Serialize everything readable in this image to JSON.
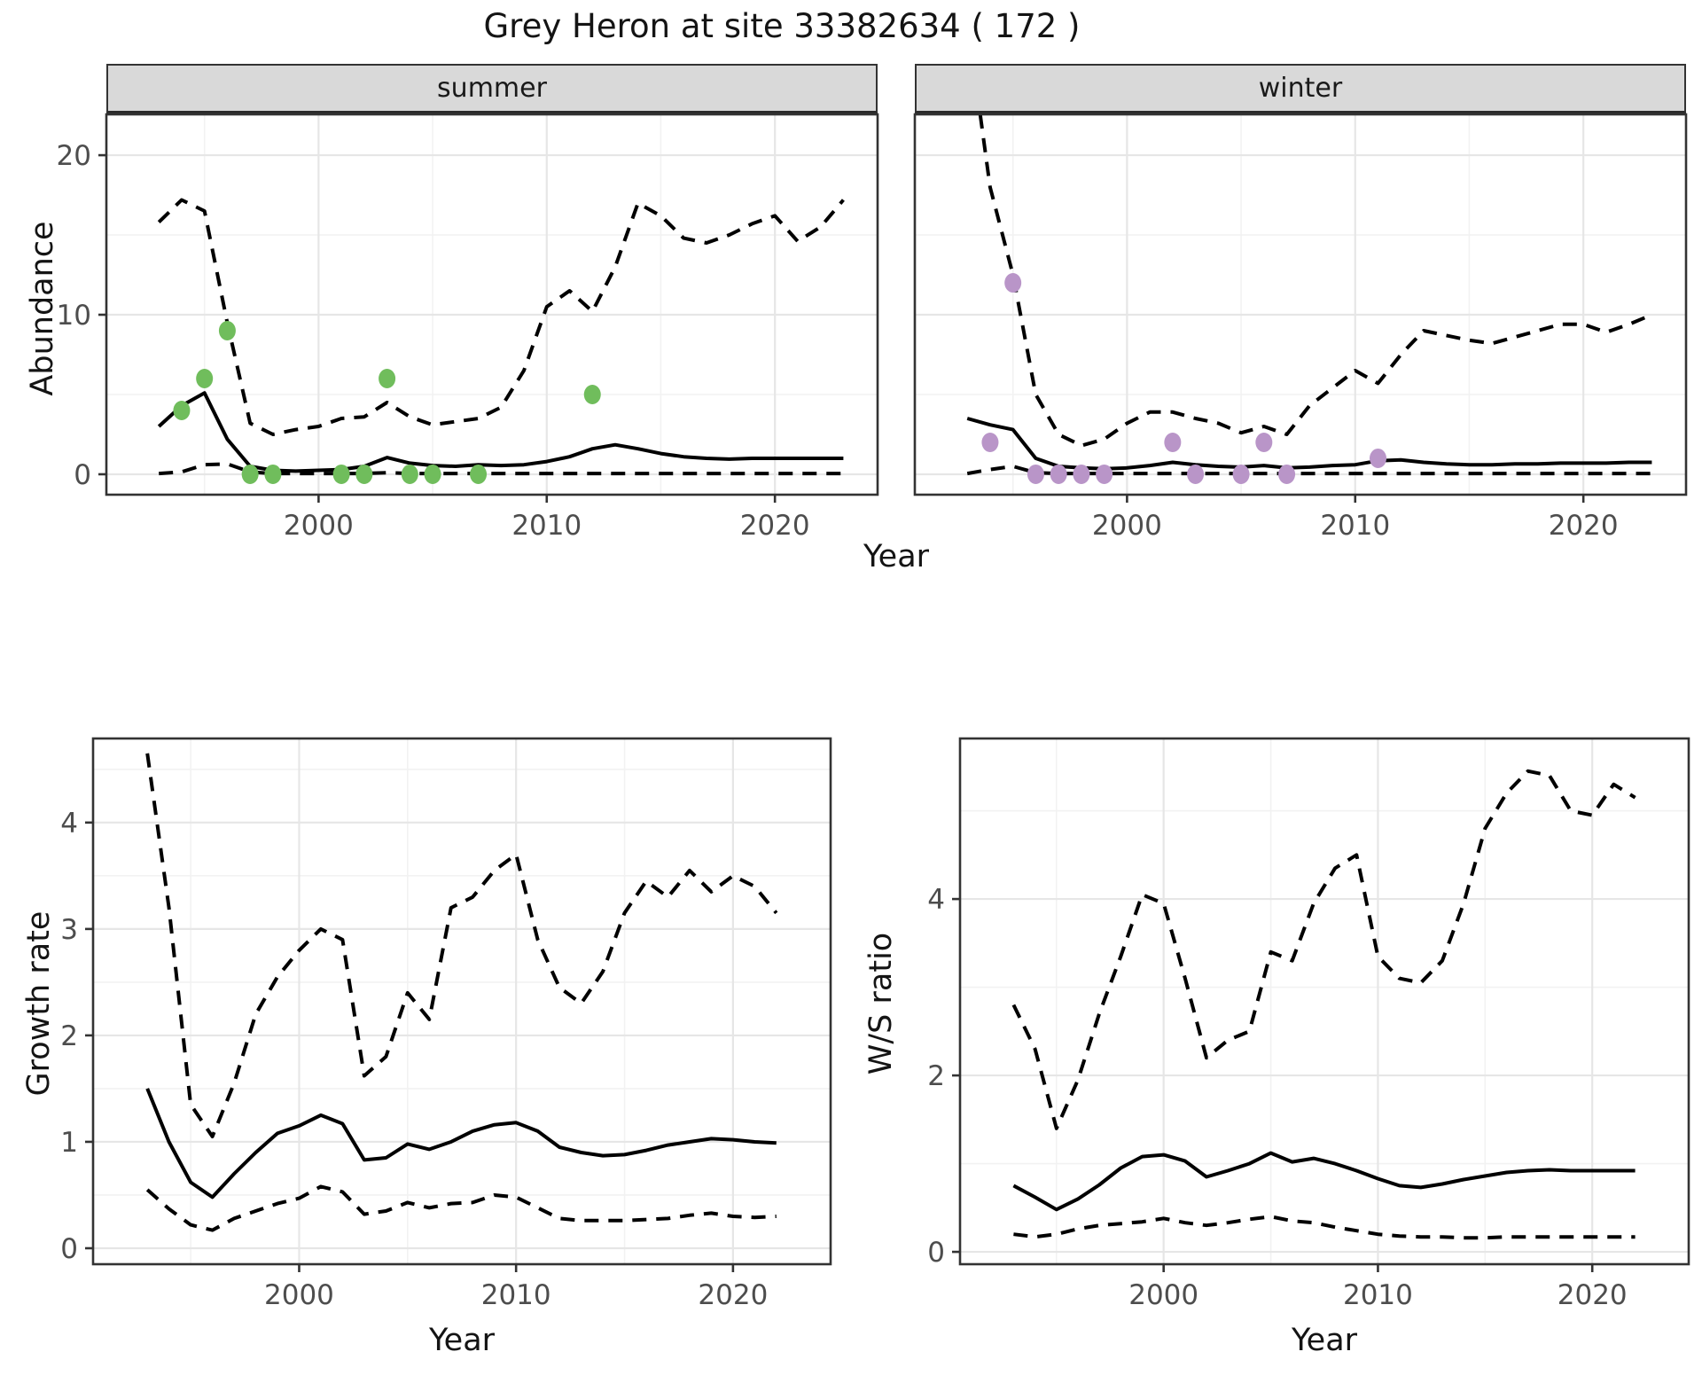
{
  "title": "Grey Heron at site 33382634 ( 172 )",
  "colors": {
    "summer_points": "#70bd5c",
    "winter_points": "#b995c8",
    "line": "#000000",
    "strip_fill": "#d9d9d9",
    "grid_major": "#e6e6e6",
    "grid_minor": "#f2f2f2",
    "axis_text": "#4d4d4d",
    "panel_border": "#333333"
  },
  "top_figure": {
    "ylab": "Abundance",
    "xlab": "Year",
    "facets": [
      "summer",
      "winter"
    ]
  },
  "bottom_left": {
    "ylab": "Growth rate",
    "xlab": "Year"
  },
  "bottom_right": {
    "ylab": "W/S ratio",
    "xlab": "Year"
  },
  "chart_data": [
    {
      "id": "abundance_summer",
      "type": "line",
      "facet": "summer",
      "title": "Abundance - summer",
      "xlabel": "Year",
      "ylabel": "Abundance",
      "x": [
        1993,
        1994,
        1995,
        1996,
        1997,
        1998,
        1999,
        2000,
        2001,
        2002,
        2003,
        2004,
        2005,
        2006,
        2007,
        2008,
        2009,
        2010,
        2011,
        2012,
        2013,
        2014,
        2015,
        2016,
        2017,
        2018,
        2019,
        2020,
        2021,
        2022,
        2023
      ],
      "series": [
        {
          "name": "fitted",
          "style": "solid",
          "values": [
            3.0,
            4.3,
            5.1,
            2.2,
            0.5,
            0.25,
            0.2,
            0.25,
            0.3,
            0.5,
            1.05,
            0.7,
            0.55,
            0.5,
            0.6,
            0.55,
            0.6,
            0.8,
            1.1,
            1.6,
            1.85,
            1.6,
            1.3,
            1.1,
            1.0,
            0.95,
            1.0,
            1.0,
            1.0,
            1.0,
            1.0
          ]
        },
        {
          "name": "upper_ci",
          "style": "dashed",
          "values": [
            15.8,
            17.2,
            16.5,
            9.5,
            3.2,
            2.5,
            2.8,
            3.0,
            3.5,
            3.6,
            4.5,
            3.6,
            3.1,
            3.3,
            3.5,
            4.2,
            6.5,
            10.5,
            11.5,
            10.2,
            13.0,
            17.0,
            16.2,
            14.8,
            14.5,
            15.0,
            15.7,
            16.2,
            14.6,
            15.5,
            17.2
          ]
        },
        {
          "name": "lower_ci",
          "style": "dashed",
          "values": [
            0.05,
            0.15,
            0.6,
            0.65,
            0.15,
            0.05,
            0.05,
            0.05,
            0.05,
            0.05,
            0.1,
            0.05,
            0.05,
            0.05,
            0.05,
            0.05,
            0.05,
            0.05,
            0.05,
            0.05,
            0.05,
            0.05,
            0.05,
            0.05,
            0.05,
            0.05,
            0.05,
            0.05,
            0.05,
            0.05,
            0.05
          ]
        }
      ],
      "points": {
        "name": "observed-counts-summer",
        "color_key": "summer_points",
        "data": [
          [
            1994,
            4
          ],
          [
            1995,
            6
          ],
          [
            1996,
            9
          ],
          [
            1997,
            0
          ],
          [
            1998,
            0
          ],
          [
            2001,
            0
          ],
          [
            2002,
            0
          ],
          [
            2003,
            6
          ],
          [
            2004,
            0
          ],
          [
            2005,
            0
          ],
          [
            2007,
            0
          ],
          [
            2012,
            5
          ]
        ]
      },
      "xlim": [
        1990.7,
        2024.5
      ],
      "ylim": [
        -1.28,
        22.56
      ],
      "xticks": [
        2000,
        2010,
        2020
      ],
      "xtick_labels": [
        "2000",
        "2010",
        "2020"
      ],
      "yticks": [
        0,
        10,
        20
      ],
      "ytick_labels": [
        "0",
        "10",
        "20"
      ],
      "show_y_labels": true,
      "xticks_minor": [
        1995,
        2005,
        2015
      ],
      "yticks_minor": [
        5,
        15
      ],
      "grid": true,
      "legend": "none"
    },
    {
      "id": "abundance_winter",
      "type": "line",
      "facet": "winter",
      "title": "Abundance - winter",
      "xlabel": "Year",
      "ylabel": "Abundance",
      "x": [
        1993,
        1994,
        1995,
        1996,
        1997,
        1998,
        1999,
        2000,
        2001,
        2002,
        2003,
        2004,
        2005,
        2006,
        2007,
        2008,
        2009,
        2010,
        2011,
        2012,
        2013,
        2014,
        2015,
        2016,
        2017,
        2018,
        2019,
        2020,
        2021,
        2022,
        2023
      ],
      "series": [
        {
          "name": "fitted",
          "style": "solid",
          "values": [
            3.5,
            3.1,
            2.8,
            1.0,
            0.5,
            0.4,
            0.35,
            0.4,
            0.55,
            0.75,
            0.6,
            0.5,
            0.45,
            0.55,
            0.4,
            0.45,
            0.55,
            0.6,
            0.85,
            0.9,
            0.75,
            0.65,
            0.6,
            0.6,
            0.65,
            0.65,
            0.7,
            0.7,
            0.7,
            0.75,
            0.75
          ]
        },
        {
          "name": "upper_ci",
          "style": "dashed",
          "values": [
            28.5,
            18.0,
            12.5,
            5.0,
            2.5,
            1.8,
            2.2,
            3.2,
            3.9,
            3.9,
            3.5,
            3.2,
            2.6,
            3.0,
            2.5,
            4.3,
            5.4,
            6.5,
            5.7,
            7.5,
            9.0,
            8.7,
            8.4,
            8.2,
            8.6,
            9.0,
            9.4,
            9.4,
            8.9,
            9.4,
            10.0
          ]
        },
        {
          "name": "lower_ci",
          "style": "dashed",
          "values": [
            0.05,
            0.3,
            0.5,
            0.1,
            0.05,
            0.05,
            0.05,
            0.05,
            0.05,
            0.05,
            0.05,
            0.05,
            0.05,
            0.05,
            0.05,
            0.05,
            0.05,
            0.05,
            0.05,
            0.05,
            0.05,
            0.05,
            0.05,
            0.05,
            0.05,
            0.05,
            0.05,
            0.05,
            0.05,
            0.05,
            0.05
          ]
        }
      ],
      "points": {
        "name": "observed-counts-winter",
        "color_key": "winter_points",
        "data": [
          [
            1994,
            2
          ],
          [
            1995,
            12
          ],
          [
            1996,
            0
          ],
          [
            1997,
            0
          ],
          [
            1998,
            0
          ],
          [
            1999,
            0
          ],
          [
            2002,
            2
          ],
          [
            2003,
            0
          ],
          [
            2005,
            0
          ],
          [
            2006,
            2
          ],
          [
            2007,
            0
          ],
          [
            2011,
            1
          ]
        ]
      },
      "xlim": [
        1990.7,
        2024.5
      ],
      "ylim": [
        -1.28,
        22.56
      ],
      "xticks": [
        2000,
        2010,
        2020
      ],
      "xtick_labels": [
        "2000",
        "2010",
        "2020"
      ],
      "yticks": [
        0,
        10,
        20
      ],
      "ytick_labels": [
        "0",
        "10",
        "20"
      ],
      "show_y_labels": false,
      "xticks_minor": [
        1995,
        2005,
        2015
      ],
      "yticks_minor": [
        5,
        15
      ],
      "grid": true,
      "legend": "none"
    },
    {
      "id": "growth_rate",
      "type": "line",
      "facet": null,
      "title": "Growth rate",
      "xlabel": "Year",
      "ylabel": "Growth rate",
      "x": [
        1993,
        1994,
        1995,
        1996,
        1997,
        1998,
        1999,
        2000,
        2001,
        2002,
        2003,
        2004,
        2005,
        2006,
        2007,
        2008,
        2009,
        2010,
        2011,
        2012,
        2013,
        2014,
        2015,
        2016,
        2017,
        2018,
        2019,
        2020,
        2021,
        2022
      ],
      "series": [
        {
          "name": "fitted",
          "style": "solid",
          "values": [
            1.5,
            1.0,
            0.62,
            0.48,
            0.7,
            0.9,
            1.08,
            1.15,
            1.25,
            1.17,
            0.83,
            0.85,
            0.98,
            0.93,
            1.0,
            1.1,
            1.16,
            1.18,
            1.1,
            0.95,
            0.9,
            0.87,
            0.88,
            0.92,
            0.97,
            1.0,
            1.03,
            1.02,
            1.0,
            0.99
          ]
        },
        {
          "name": "upper_ci",
          "style": "dashed",
          "values": [
            4.65,
            3.2,
            1.35,
            1.05,
            1.55,
            2.2,
            2.55,
            2.8,
            3.0,
            2.9,
            1.62,
            1.8,
            2.4,
            2.15,
            3.2,
            3.3,
            3.55,
            3.7,
            2.9,
            2.45,
            2.3,
            2.6,
            3.15,
            3.45,
            3.3,
            3.55,
            3.35,
            3.5,
            3.4,
            3.15
          ]
        },
        {
          "name": "lower_ci",
          "style": "dashed",
          "values": [
            0.55,
            0.37,
            0.22,
            0.17,
            0.28,
            0.35,
            0.42,
            0.47,
            0.58,
            0.53,
            0.32,
            0.35,
            0.43,
            0.38,
            0.42,
            0.43,
            0.5,
            0.48,
            0.38,
            0.28,
            0.26,
            0.26,
            0.26,
            0.27,
            0.28,
            0.31,
            0.33,
            0.3,
            0.29,
            0.3
          ]
        }
      ],
      "points": null,
      "xlim": [
        1990.5,
        2024.5
      ],
      "ylim": [
        -0.15,
        4.79
      ],
      "xticks": [
        2000,
        2010,
        2020
      ],
      "xtick_labels": [
        "2000",
        "2010",
        "2020"
      ],
      "yticks": [
        0,
        1,
        2,
        3,
        4
      ],
      "ytick_labels": [
        "0",
        "1",
        "2",
        "3",
        "4"
      ],
      "show_y_labels": true,
      "xticks_minor": [
        1995,
        2005,
        2015
      ],
      "yticks_minor": [
        0.5,
        1.5,
        2.5,
        3.5,
        4.5
      ],
      "grid": true,
      "legend": "none"
    },
    {
      "id": "ws_ratio",
      "type": "line",
      "facet": null,
      "title": "W/S ratio",
      "xlabel": "Year",
      "ylabel": "W/S ratio",
      "x": [
        1993,
        1994,
        1995,
        1996,
        1997,
        1998,
        1999,
        2000,
        2001,
        2002,
        2003,
        2004,
        2005,
        2006,
        2007,
        2008,
        2009,
        2010,
        2011,
        2012,
        2013,
        2014,
        2015,
        2016,
        2017,
        2018,
        2019,
        2020,
        2021,
        2022
      ],
      "series": [
        {
          "name": "fitted",
          "style": "solid",
          "values": [
            0.75,
            0.62,
            0.48,
            0.6,
            0.76,
            0.95,
            1.08,
            1.1,
            1.03,
            0.85,
            0.92,
            1.0,
            1.12,
            1.02,
            1.06,
            1.0,
            0.92,
            0.83,
            0.75,
            0.73,
            0.77,
            0.82,
            0.86,
            0.9,
            0.92,
            0.93,
            0.92,
            0.92,
            0.92,
            0.92
          ]
        },
        {
          "name": "upper_ci",
          "style": "dashed",
          "values": [
            2.8,
            2.3,
            1.4,
            1.95,
            2.7,
            3.35,
            4.05,
            3.95,
            3.1,
            2.2,
            2.4,
            2.5,
            3.4,
            3.3,
            3.95,
            4.35,
            4.5,
            3.35,
            3.1,
            3.05,
            3.3,
            3.95,
            4.8,
            5.2,
            5.45,
            5.4,
            5.0,
            4.95,
            5.3,
            5.15
          ]
        },
        {
          "name": "lower_ci",
          "style": "dashed",
          "values": [
            0.2,
            0.17,
            0.2,
            0.26,
            0.3,
            0.32,
            0.34,
            0.38,
            0.33,
            0.3,
            0.33,
            0.37,
            0.4,
            0.35,
            0.33,
            0.28,
            0.24,
            0.2,
            0.18,
            0.17,
            0.17,
            0.16,
            0.16,
            0.17,
            0.17,
            0.17,
            0.17,
            0.17,
            0.17,
            0.17
          ]
        }
      ],
      "points": null,
      "xlim": [
        1990.5,
        2024.5
      ],
      "ylim": [
        -0.14,
        5.82
      ],
      "xticks": [
        2000,
        2010,
        2020
      ],
      "xtick_labels": [
        "2000",
        "2010",
        "2020"
      ],
      "yticks": [
        0,
        2,
        4
      ],
      "ytick_labels": [
        "0",
        "2",
        "4"
      ],
      "show_y_labels": true,
      "xticks_minor": [
        1995,
        2005,
        2015
      ],
      "yticks_minor": [
        1,
        3,
        5
      ],
      "grid": true,
      "legend": "none"
    }
  ]
}
